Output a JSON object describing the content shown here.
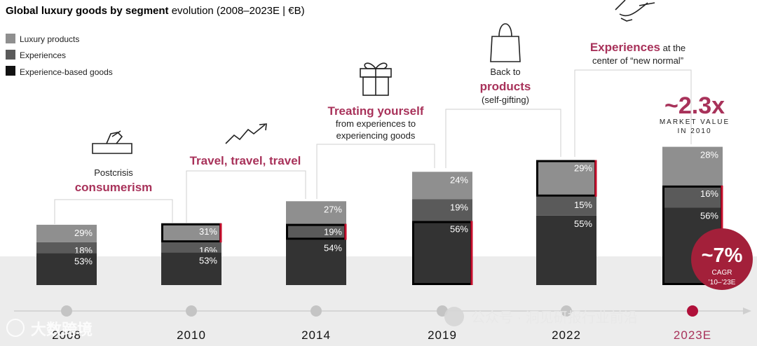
{
  "title": {
    "bold": "Global luxury goods by segment",
    "rest": " evolution (2008–2023E | €B)"
  },
  "legend": [
    {
      "label": "Luxury products",
      "color": "#8f8f8f"
    },
    {
      "label": "Experiences",
      "color": "#5a5a5a"
    },
    {
      "label": "Experience-based goods",
      "color": "#121212"
    }
  ],
  "captions": {
    "c2008": {
      "line1": "Postcrisis",
      "accent": "consumerism"
    },
    "c2010": {
      "accent": "Travel, travel, travel"
    },
    "c2014": {
      "accent": "Treating yourself",
      "line2": "from experiences to",
      "line3": "experiencing goods"
    },
    "c2019": {
      "line1": "Back to",
      "accent": "products",
      "line3": "(self-gifting)"
    },
    "c2022": {
      "accent": "Experiences",
      "rest": " at the",
      "line2": "center of “new normal”"
    }
  },
  "multiplier": {
    "value": "~2.3x",
    "line1": "MARKET VALUE",
    "line2": "IN 2010"
  },
  "cagr": {
    "value": "~7%",
    "line1": "CAGR",
    "line2": "’10–’23E"
  },
  "watermark": {
    "left": "大数跨境",
    "right": "公众号 · 洞见研报行业前沿"
  },
  "colors": {
    "luxury": "#8f8f8f",
    "experiences": "#5a5a5a",
    "goods": "#333333",
    "accent": "#a8325a",
    "red": "#c8102e"
  },
  "chart_data": {
    "type": "bar",
    "stacked": true,
    "unit": "% share of total",
    "categories": [
      "2008",
      "2010",
      "2014",
      "2019",
      "2022",
      "2023E"
    ],
    "series": [
      {
        "name": "Luxury products",
        "values": [
          29,
          31,
          27,
          24,
          29,
          28
        ]
      },
      {
        "name": "Experiences",
        "values": [
          18,
          16,
          19,
          19,
          15,
          16
        ]
      },
      {
        "name": "Experience-based goods",
        "values": [
          53,
          53,
          54,
          56,
          55,
          56
        ]
      }
    ],
    "relative_market_size": [
      0.41,
      0.42,
      0.57,
      0.77,
      0.85,
      0.94
    ],
    "highlighted_segment": [
      "",
      "Luxury products",
      "Experiences",
      "Experience-based goods",
      "Luxury products",
      "Experiences+Experience-based goods"
    ]
  }
}
